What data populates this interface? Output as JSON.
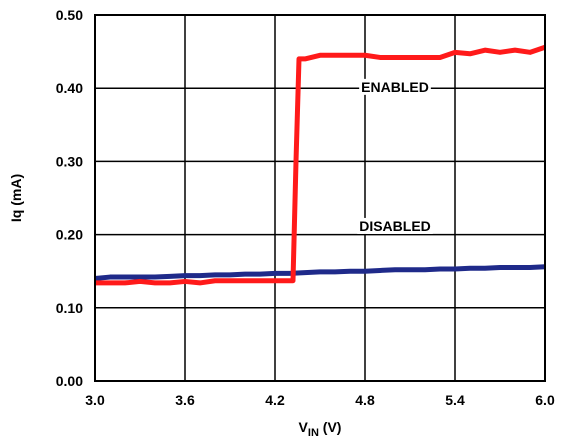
{
  "chart_data": {
    "type": "line",
    "title": "",
    "xlabel_main": "V",
    "xlabel_sub": "IN",
    "xlabel_unit": " (V)",
    "ylabel": "Iq (mA)",
    "xlim": [
      3.0,
      6.0
    ],
    "ylim": [
      0.0,
      0.5
    ],
    "x_ticks": [
      3.0,
      3.6,
      4.2,
      4.8,
      5.4,
      6.0
    ],
    "x_tick_labels": [
      "3.0",
      "3.6",
      "4.2",
      "4.8",
      "5.4",
      "6.0"
    ],
    "y_ticks": [
      0.0,
      0.1,
      0.2,
      0.3,
      0.4,
      0.5
    ],
    "y_tick_labels": [
      "0.00",
      "0.10",
      "0.20",
      "0.30",
      "0.40",
      "0.50"
    ],
    "grid": true,
    "series": [
      {
        "name": "ENABLED",
        "color": "#ff1a1a",
        "x": [
          3.0,
          3.1,
          3.2,
          3.3,
          3.4,
          3.5,
          3.6,
          3.7,
          3.8,
          3.9,
          4.0,
          4.1,
          4.2,
          4.3,
          4.32,
          4.34,
          4.36,
          4.4,
          4.5,
          4.6,
          4.7,
          4.8,
          4.9,
          5.0,
          5.1,
          5.2,
          5.3,
          5.4,
          5.5,
          5.6,
          5.7,
          5.8,
          5.9,
          6.0
        ],
        "y": [
          0.134,
          0.134,
          0.134,
          0.136,
          0.134,
          0.134,
          0.136,
          0.134,
          0.137,
          0.137,
          0.137,
          0.137,
          0.137,
          0.137,
          0.137,
          0.3,
          0.44,
          0.44,
          0.445,
          0.445,
          0.445,
          0.445,
          0.442,
          0.442,
          0.442,
          0.442,
          0.442,
          0.449,
          0.447,
          0.452,
          0.449,
          0.452,
          0.449,
          0.456
        ]
      },
      {
        "name": "DISABLED",
        "color": "#1f2a8a",
        "x": [
          3.0,
          3.1,
          3.2,
          3.3,
          3.4,
          3.5,
          3.6,
          3.7,
          3.8,
          3.9,
          4.0,
          4.1,
          4.2,
          4.3,
          4.4,
          4.5,
          4.6,
          4.7,
          4.8,
          4.9,
          5.0,
          5.1,
          5.2,
          5.3,
          5.4,
          5.5,
          5.6,
          5.7,
          5.8,
          5.9,
          6.0
        ],
        "y": [
          0.14,
          0.142,
          0.142,
          0.142,
          0.142,
          0.143,
          0.144,
          0.144,
          0.145,
          0.145,
          0.146,
          0.146,
          0.147,
          0.147,
          0.148,
          0.149,
          0.149,
          0.15,
          0.15,
          0.151,
          0.152,
          0.152,
          0.152,
          0.153,
          0.153,
          0.154,
          0.154,
          0.155,
          0.155,
          0.155,
          0.156
        ]
      }
    ],
    "annotations": [
      {
        "text": "ENABLED",
        "x": 5.0,
        "y": 0.395
      },
      {
        "text": "DISABLED",
        "x": 5.0,
        "y": 0.205
      }
    ]
  }
}
